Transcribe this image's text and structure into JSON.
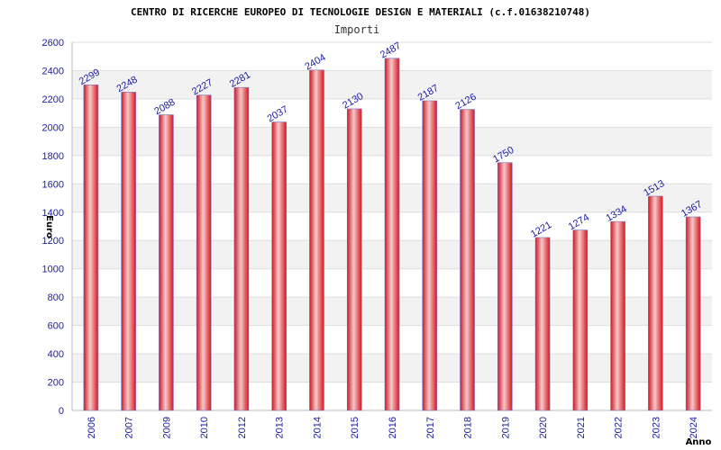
{
  "chart_data": {
    "type": "bar",
    "title": "CENTRO DI RICERCHE EUROPEO DI TECNOLOGIE DESIGN E MATERIALI (c.f.01638210748)",
    "subtitle": "Importi",
    "xlabel": "Anno",
    "ylabel": "Euro",
    "categories": [
      "2006",
      "2007",
      "2009",
      "2010",
      "2012",
      "2013",
      "2014",
      "2015",
      "2016",
      "2017",
      "2018",
      "2019",
      "2020",
      "2021",
      "2022",
      "2023",
      "2024"
    ],
    "values": [
      2299,
      2248,
      2088,
      2227,
      2281,
      2037,
      2404,
      2130,
      2487,
      2187,
      2126,
      1750,
      1221,
      1274,
      1334,
      1513,
      1367
    ],
    "ylim": [
      0,
      2600
    ],
    "yticks": [
      0,
      200,
      400,
      600,
      800,
      1000,
      1200,
      1400,
      1600,
      1800,
      2000,
      2200,
      2400,
      2600
    ],
    "grid": true,
    "legend": "none",
    "colors": {
      "bar": "#e8242b",
      "bar_highlight": "#f8c8ca",
      "bar_edge": "#7a6fc0",
      "text": "#1a1aa6",
      "grid_band": "#f2f2f2"
    }
  }
}
